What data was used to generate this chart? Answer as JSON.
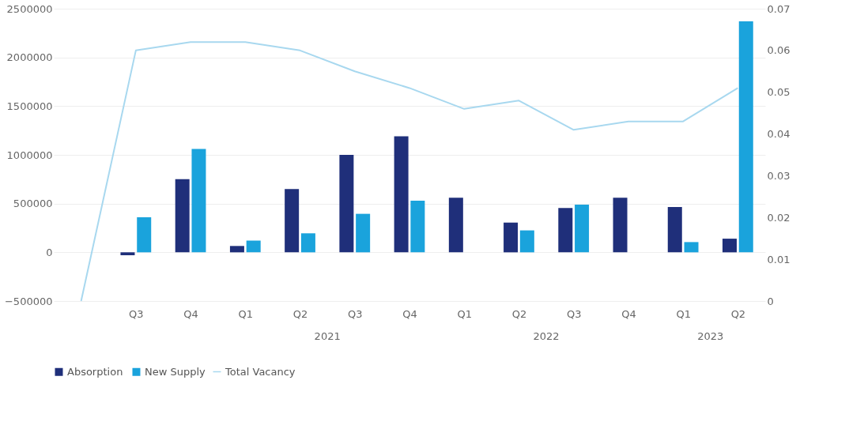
{
  "chart_data": {
    "type": "bar",
    "categories": [
      null,
      "Q3",
      "Q4",
      "Q1",
      "Q2",
      "Q3",
      "Q4",
      "Q1",
      "Q2",
      "Q3",
      "Q4",
      "Q1",
      "Q2"
    ],
    "series": [
      {
        "name": "Absorption",
        "color": "#1f2f7a",
        "values": [
          null,
          -30000,
          750000,
          65000,
          650000,
          1000000,
          1190000,
          560000,
          305000,
          455000,
          560000,
          465000,
          140000
        ]
      },
      {
        "name": "New Supply",
        "color": "#1aa3dc",
        "values": [
          null,
          360000,
          1060000,
          120000,
          195000,
          395000,
          530000,
          null,
          225000,
          490000,
          null,
          105000,
          2370000
        ]
      },
      {
        "name": "Total Vacancy",
        "type": "line",
        "axis": "y2",
        "color": "#a8d8ef",
        "values": [
          0,
          0.06,
          0.062,
          0.062,
          0.06,
          0.055,
          0.051,
          0.046,
          0.048,
          0.041,
          0.043,
          0.043,
          0.051
        ]
      }
    ],
    "ylim": [
      -500000,
      2500000
    ],
    "yticks": [
      -500000,
      0,
      500000,
      1000000,
      1500000,
      2000000,
      2500000
    ],
    "y2lim": [
      0,
      0.07
    ],
    "y2ticks": [
      0,
      0.01,
      0.02,
      0.03,
      0.04,
      0.05,
      0.06,
      0.07
    ],
    "annotations": [
      "2021",
      "2022",
      "2023"
    ],
    "grid": "y",
    "legend": "bottom"
  }
}
